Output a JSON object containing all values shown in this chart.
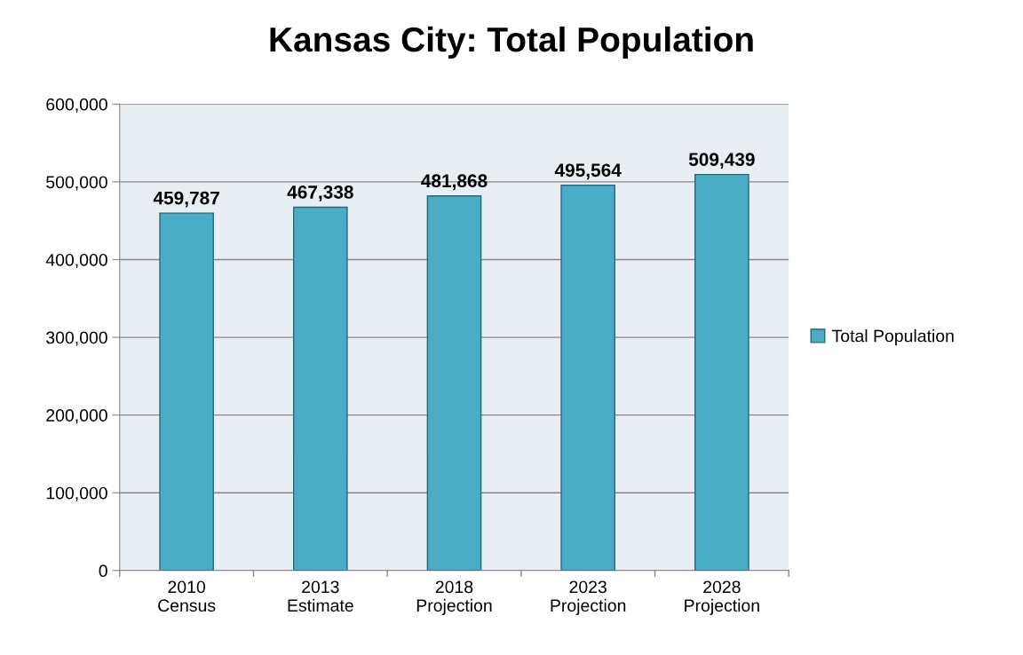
{
  "chart_data": {
    "type": "bar",
    "title": "Kansas City: Total Population",
    "categories": [
      "2010\nCensus",
      "2013\nEstimate",
      "2018\nProjection",
      "2023\nProjection",
      "2028\nProjection"
    ],
    "series": [
      {
        "name": "Total Population",
        "color": "#4bacc6",
        "values": [
          459787,
          467338,
          481868,
          495564,
          509439
        ],
        "value_labels": [
          "459,787",
          "467,338",
          "481,868",
          "495,564",
          "509,439"
        ]
      }
    ],
    "ylim": [
      0,
      600000
    ],
    "yticks": [
      {
        "value": 0,
        "label": "0"
      },
      {
        "value": 100000,
        "label": "100,000"
      },
      {
        "value": 200000,
        "label": "200,000"
      },
      {
        "value": 300000,
        "label": "300,000"
      },
      {
        "value": 400000,
        "label": "400,000"
      },
      {
        "value": 500000,
        "label": "500,000"
      },
      {
        "value": 600000,
        "label": "600,000"
      }
    ],
    "grid": "y",
    "legend": "right"
  }
}
